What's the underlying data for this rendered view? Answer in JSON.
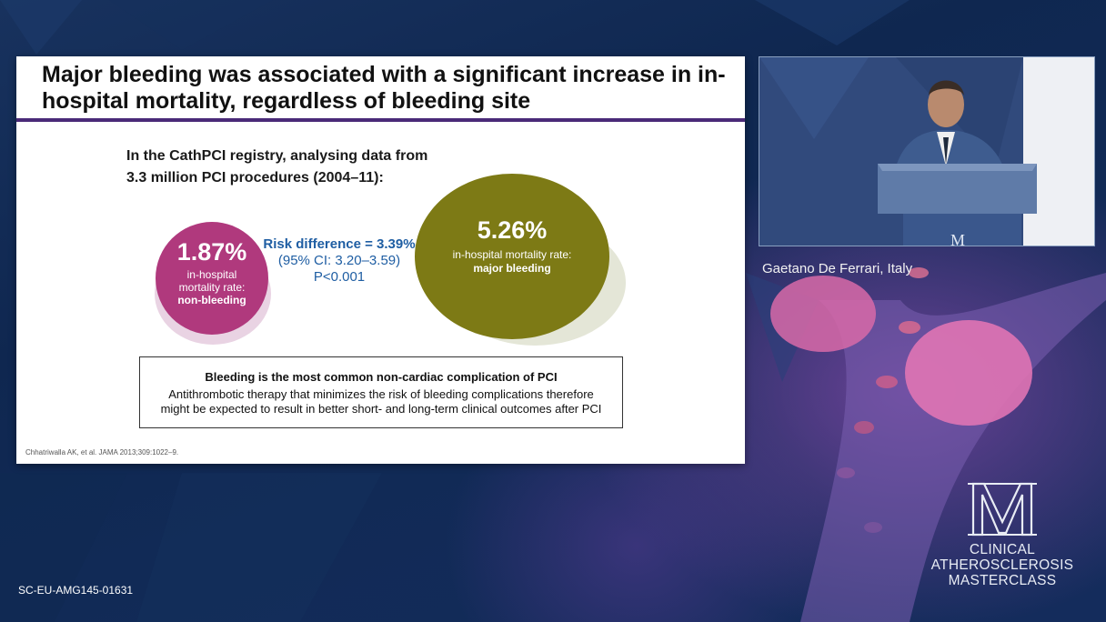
{
  "slide": {
    "title": "Major bleeding was associated with a significant increase in in-hospital mortality, regardless of bleeding site",
    "intro_line1": "In the CathPCI registry, analysing data from",
    "intro_line2": "3.3 million PCI procedures (2004–11):",
    "non_bleeding": {
      "value": "1.87%",
      "label_line1": "in-hospital",
      "label_line2": "mortality rate:",
      "label_bold": "non-bleeding",
      "color": "#b0397d"
    },
    "major_bleeding": {
      "value": "5.26%",
      "label": "in-hospital mortality rate:",
      "label_bold": "major bleeding",
      "color": "#7d7a15"
    },
    "risk": {
      "line1": "Risk difference = 3.39%",
      "line2": "(95% CI: 3.20–3.59)",
      "line3": "P<0.001",
      "color": "#1f5ea3"
    },
    "box": {
      "heading": "Bleeding is the most common non-cardiac complication of PCI",
      "body": "Antithrombotic therapy that minimizes the risk of bleeding complications therefore might be expected to result in better short- and long-term clinical outcomes after PCI"
    },
    "citation": "Chhatriwalla AK, et al. JAMA 2013;309:1022–9."
  },
  "speaker": {
    "name": "Gaetano De Ferrari, Italy"
  },
  "logo": {
    "line1": "CLINICAL",
    "line2": "ATHEROSCLEROSIS",
    "line3": "MASTERCLASS"
  },
  "footer_code": "SC-EU-AMG145-01631"
}
